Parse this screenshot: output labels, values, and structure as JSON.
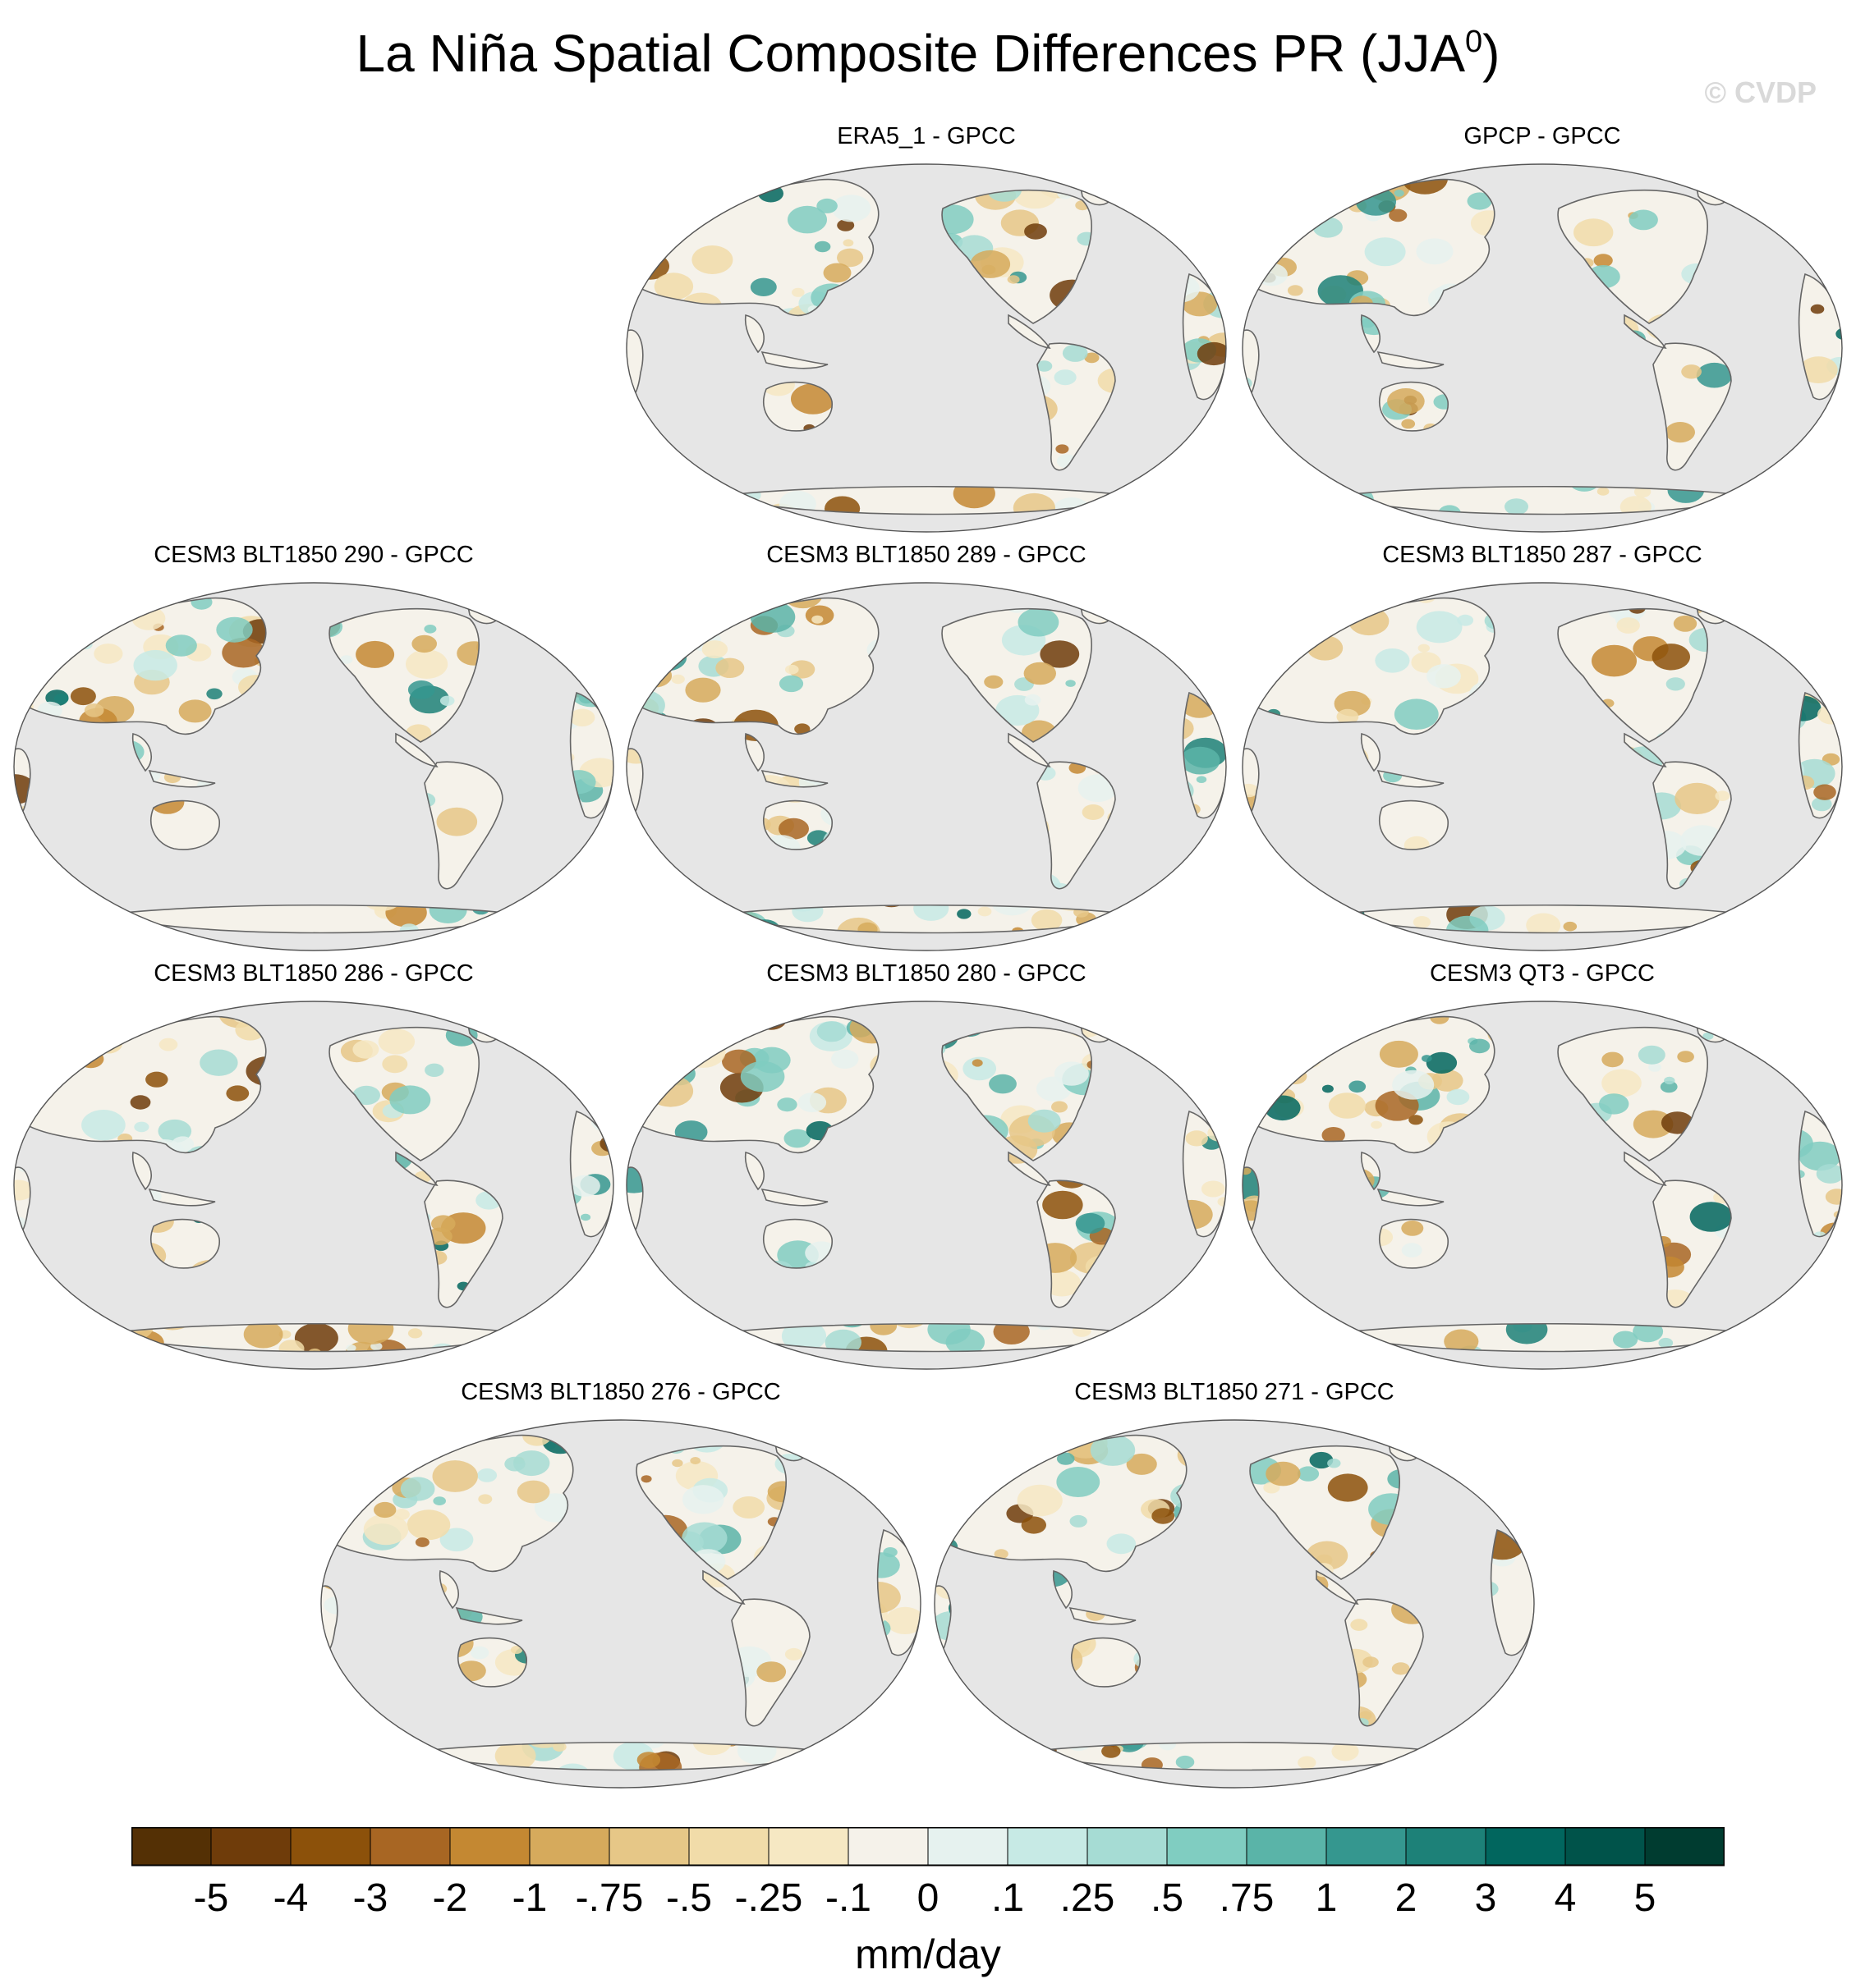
{
  "title": "La Niña Spatial Composite Differences PR (JJA",
  "title_sup": "0",
  "title_close": ")",
  "watermark": "© CVDP",
  "colors": {
    "ocean": "#e6e6e6",
    "coast": "#666666"
  },
  "panels": [
    {
      "title": "ERA5_1 - GPCC"
    },
    {
      "title": "GPCP - GPCC"
    },
    {
      "title": "CESM3 BLT1850 290 - GPCC"
    },
    {
      "title": "CESM3 BLT1850 289 - GPCC"
    },
    {
      "title": "CESM3 BLT1850 287 - GPCC"
    },
    {
      "title": "CESM3 BLT1850 286 - GPCC"
    },
    {
      "title": "CESM3 BLT1850 280 - GPCC"
    },
    {
      "title": "CESM3 QT3 - GPCC"
    },
    {
      "title": "CESM3 BLT1850 276 - GPCC"
    },
    {
      "title": "CESM3 BLT1850 271 - GPCC"
    }
  ],
  "colorbar": {
    "colors": [
      "#543005",
      "#6f3c0a",
      "#8c510a",
      "#a86623",
      "#c48832",
      "#d6aa5c",
      "#e6c787",
      "#f1dca9",
      "#f6e8c3",
      "#f5f2ea",
      "#e6f2ef",
      "#c7eae5",
      "#a6dcd4",
      "#80cdc1",
      "#5ab4a8",
      "#35978f",
      "#1d8178",
      "#01665e",
      "#00534a",
      "#003c30"
    ],
    "labels": [
      "-5",
      "-4",
      "-3",
      "-2",
      "-1",
      "-.75",
      "-.5",
      "-.25",
      "-.1",
      "0",
      ".1",
      ".25",
      ".5",
      ".75",
      "1",
      "2",
      "3",
      "4",
      "5"
    ]
  },
  "units": "mm/day"
}
